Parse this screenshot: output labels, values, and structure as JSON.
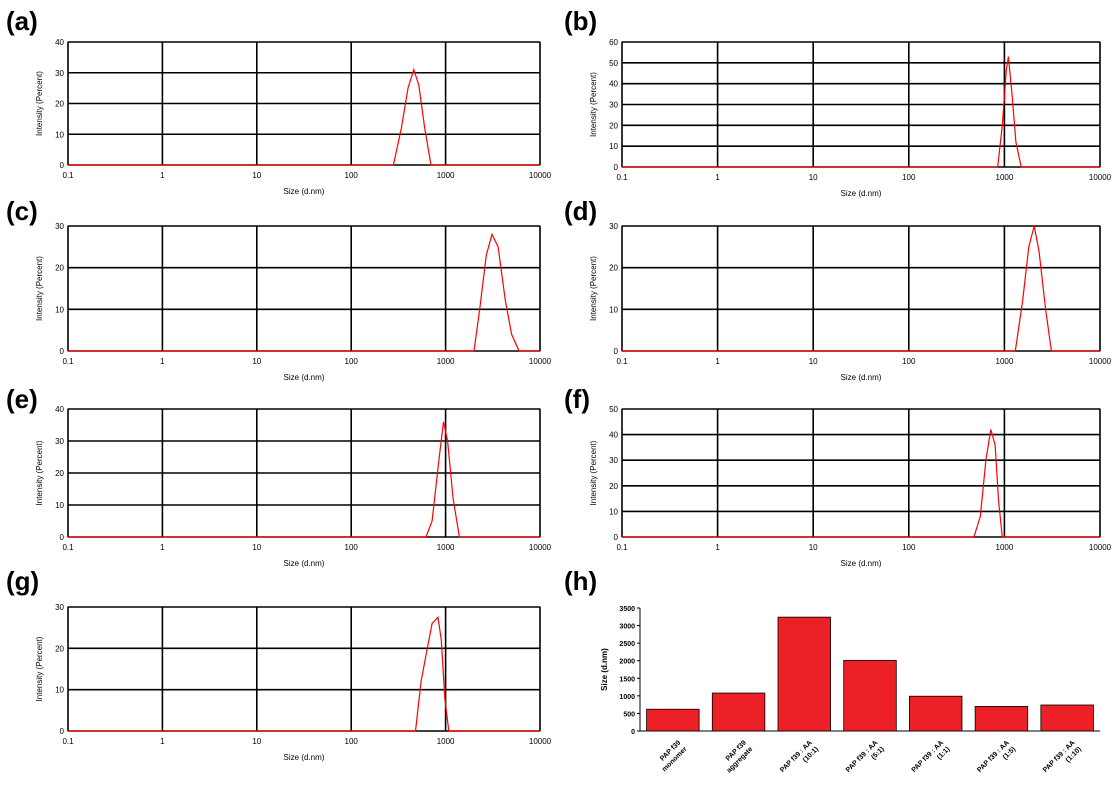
{
  "panels": {
    "a": "(a)",
    "b": "(b)",
    "c": "(c)",
    "d": "(d)",
    "e": "(e)",
    "f": "(f)",
    "g": "(g)",
    "h": "(h)"
  },
  "colors": {
    "trace": "#ff0000",
    "bar": "#ee2027",
    "grid": "#000000"
  },
  "chart_data": [
    {
      "id": "a",
      "type": "line",
      "xscale": "log",
      "xlim": [
        0.1,
        10000
      ],
      "ylim": [
        0,
        40
      ],
      "xticks": [
        "0.1",
        "1",
        "10",
        "100",
        "1000",
        "10000"
      ],
      "yticks": [
        0,
        10,
        20,
        30,
        40
      ],
      "xlabel": "Size (d.nm)",
      "ylabel": "Intensity (Percent)",
      "x": [
        0.1,
        280,
        340,
        400,
        460,
        520,
        600,
        700,
        10000
      ],
      "y": [
        0,
        0,
        12,
        25,
        31,
        26,
        12,
        0,
        0
      ]
    },
    {
      "id": "b",
      "type": "line",
      "xscale": "log",
      "xlim": [
        0.1,
        10000
      ],
      "ylim": [
        0,
        60
      ],
      "xticks": [
        "0.1",
        "1",
        "10",
        "100",
        "1000",
        "10000"
      ],
      "yticks": [
        0,
        10,
        20,
        30,
        40,
        50,
        60
      ],
      "xlabel": "Size (d.nm)",
      "ylabel": "Intensity (Percent)",
      "x": [
        0.1,
        850,
        950,
        1050,
        1100,
        1200,
        1320,
        1500,
        10000
      ],
      "y": [
        0,
        0,
        20,
        47,
        53,
        35,
        12,
        0,
        0
      ]
    },
    {
      "id": "c",
      "type": "line",
      "xscale": "log",
      "xlim": [
        0.1,
        10000
      ],
      "ylim": [
        0,
        30
      ],
      "xticks": [
        "0.1",
        "1",
        "10",
        "100",
        "1000",
        "10000"
      ],
      "yticks": [
        0,
        10,
        20,
        30
      ],
      "xlabel": "Size (d.nm)",
      "ylabel": "Intensity (Percent)",
      "x": [
        0.1,
        2000,
        2300,
        2700,
        3100,
        3600,
        4300,
        5000,
        6000,
        10000
      ],
      "y": [
        0,
        0,
        10,
        23,
        28,
        25,
        12,
        4,
        0,
        0
      ]
    },
    {
      "id": "d",
      "type": "line",
      "xscale": "log",
      "xlim": [
        0.1,
        10000
      ],
      "ylim": [
        0,
        30
      ],
      "xticks": [
        "0.1",
        "1",
        "10",
        "100",
        "1000",
        "10000"
      ],
      "yticks": [
        0,
        10,
        20,
        30
      ],
      "xlabel": "Size (d.nm)",
      "ylabel": "Intensity (Percent)",
      "x": [
        0.1,
        1300,
        1550,
        1800,
        2050,
        2300,
        2700,
        3100,
        10000
      ],
      "y": [
        0,
        0,
        12,
        25,
        30,
        24,
        10,
        0,
        0
      ]
    },
    {
      "id": "e",
      "type": "line",
      "xscale": "log",
      "xlim": [
        0.1,
        10000
      ],
      "ylim": [
        0,
        40
      ],
      "xticks": [
        "0.1",
        "1",
        "10",
        "100",
        "1000",
        "10000"
      ],
      "yticks": [
        0,
        10,
        20,
        30,
        40
      ],
      "xlabel": "Size (d.nm)",
      "ylabel": "Intensity (Percent)",
      "x": [
        0.1,
        620,
        720,
        850,
        950,
        1050,
        1200,
        1400,
        10000
      ],
      "y": [
        0,
        0,
        5,
        24,
        36,
        30,
        12,
        0,
        0
      ]
    },
    {
      "id": "f",
      "type": "line",
      "xscale": "log",
      "xlim": [
        0.1,
        10000
      ],
      "ylim": [
        0,
        50
      ],
      "xticks": [
        "0.1",
        "1",
        "10",
        "100",
        "1000",
        "10000"
      ],
      "yticks": [
        0,
        10,
        20,
        30,
        40,
        50
      ],
      "xlabel": "Size (d.nm)",
      "ylabel": "Intensity (Percent)",
      "x": [
        0.1,
        480,
        560,
        640,
        720,
        800,
        870,
        950,
        10000
      ],
      "y": [
        0,
        0,
        8,
        30,
        42,
        36,
        14,
        0,
        0
      ]
    },
    {
      "id": "g",
      "type": "line",
      "xscale": "log",
      "xlim": [
        0.1,
        10000
      ],
      "ylim": [
        0,
        30
      ],
      "xticks": [
        "0.1",
        "1",
        "10",
        "100",
        "1000",
        "10000"
      ],
      "yticks": [
        0,
        10,
        20,
        30
      ],
      "xlabel": "Size (d.nm)",
      "ylabel": "Intensity (Percent)",
      "x": [
        0.1,
        480,
        550,
        640,
        720,
        830,
        900,
        980,
        1080,
        10000
      ],
      "y": [
        0,
        0,
        12,
        20,
        26,
        27.5,
        22,
        8,
        0,
        0
      ]
    },
    {
      "id": "h",
      "type": "bar",
      "ylim": [
        0,
        3500
      ],
      "yticks": [
        0,
        500,
        1000,
        1500,
        2000,
        2500,
        3000,
        3500
      ],
      "xlabel": "",
      "ylabel": "Size (d.nm)",
      "categories": [
        [
          "PAP f39",
          "monomer"
        ],
        [
          "PAP f39",
          "aggregate"
        ],
        [
          "PAP f39 : AA",
          "(10:1)"
        ],
        [
          "PAP f39 : AA",
          "(5:1)"
        ],
        [
          "PAP f39 : AA",
          "(1:1)"
        ],
        [
          "PAP f39 : AA",
          "(1:5)"
        ],
        [
          "PAP f39 : AA",
          "(1:10)"
        ]
      ],
      "values": [
        620,
        1080,
        3240,
        2010,
        990,
        700,
        740
      ]
    }
  ]
}
